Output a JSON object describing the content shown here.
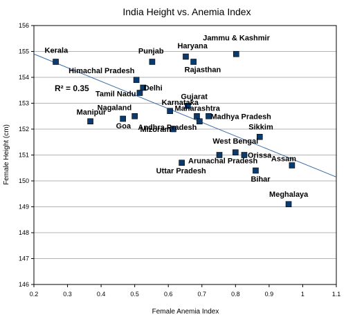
{
  "chart_data": {
    "type": "scatter",
    "title": "India Height vs. Anemia Index",
    "xlabel": "Female Anemia Index",
    "ylabel": "Female Height (cm)",
    "xlim": [
      0.2,
      1.1
    ],
    "ylim": [
      146,
      156
    ],
    "xticks": [
      "0.2",
      "0.3",
      "0.4",
      "0.5",
      "0.6",
      "0.7",
      "0.8",
      "0.9",
      "1",
      "1.1"
    ],
    "yticks": [
      "146",
      "147",
      "148",
      "149",
      "150",
      "151",
      "152",
      "153",
      "154",
      "155",
      "156"
    ],
    "grid": "horizontal",
    "marker_color": "#0b3b6e",
    "trendline_color": "#3d6fa8",
    "trendline": {
      "x": [
        0.2,
        1.1
      ],
      "y": [
        154.9,
        150.15
      ]
    },
    "r_squared": "R² = 0.35",
    "points": [
      {
        "name": "Kerala",
        "x": 0.265,
        "y": 154.6
      },
      {
        "name": "Punjab",
        "x": 0.552,
        "y": 154.6
      },
      {
        "name": "Haryana",
        "x": 0.652,
        "y": 154.8
      },
      {
        "name": "Rajasthan",
        "x": 0.675,
        "y": 154.6
      },
      {
        "name": "Jammu & Kashmir",
        "x": 0.802,
        "y": 154.9
      },
      {
        "name": "Himachal Pradesh",
        "x": 0.505,
        "y": 153.9
      },
      {
        "name": "Delhi",
        "x": 0.525,
        "y": 153.6
      },
      {
        "name": "Tamil Nadu",
        "x": 0.515,
        "y": 153.4
      },
      {
        "name": "Gujarat",
        "x": 0.658,
        "y": 152.9
      },
      {
        "name": "Karnataka",
        "x": 0.605,
        "y": 152.7
      },
      {
        "name": "Maharashtra",
        "x": 0.685,
        "y": 152.5
      },
      {
        "name": "Madhya Pradesh",
        "x": 0.72,
        "y": 152.5
      },
      {
        "name": "Andhra Pradesh",
        "x": 0.693,
        "y": 152.3
      },
      {
        "name": "Nagaland",
        "x": 0.5,
        "y": 152.5
      },
      {
        "name": "Manipur",
        "x": 0.368,
        "y": 152.3
      },
      {
        "name": "Goa",
        "x": 0.465,
        "y": 152.4
      },
      {
        "name": "Mizoram",
        "x": 0.615,
        "y": 152.0
      },
      {
        "name": "Sikkim",
        "x": 0.872,
        "y": 151.7
      },
      {
        "name": "West Bengal",
        "x": 0.8,
        "y": 151.1
      },
      {
        "name": "Orissa",
        "x": 0.826,
        "y": 151.0
      },
      {
        "name": "Arunachal Pradesh",
        "x": 0.752,
        "y": 151.0
      },
      {
        "name": "Uttar Pradesh",
        "x": 0.64,
        "y": 150.7
      },
      {
        "name": "Assam",
        "x": 0.968,
        "y": 150.6
      },
      {
        "name": "Bihar",
        "x": 0.86,
        "y": 150.4
      },
      {
        "name": "Meghalaya",
        "x": 0.958,
        "y": 149.1
      }
    ]
  }
}
